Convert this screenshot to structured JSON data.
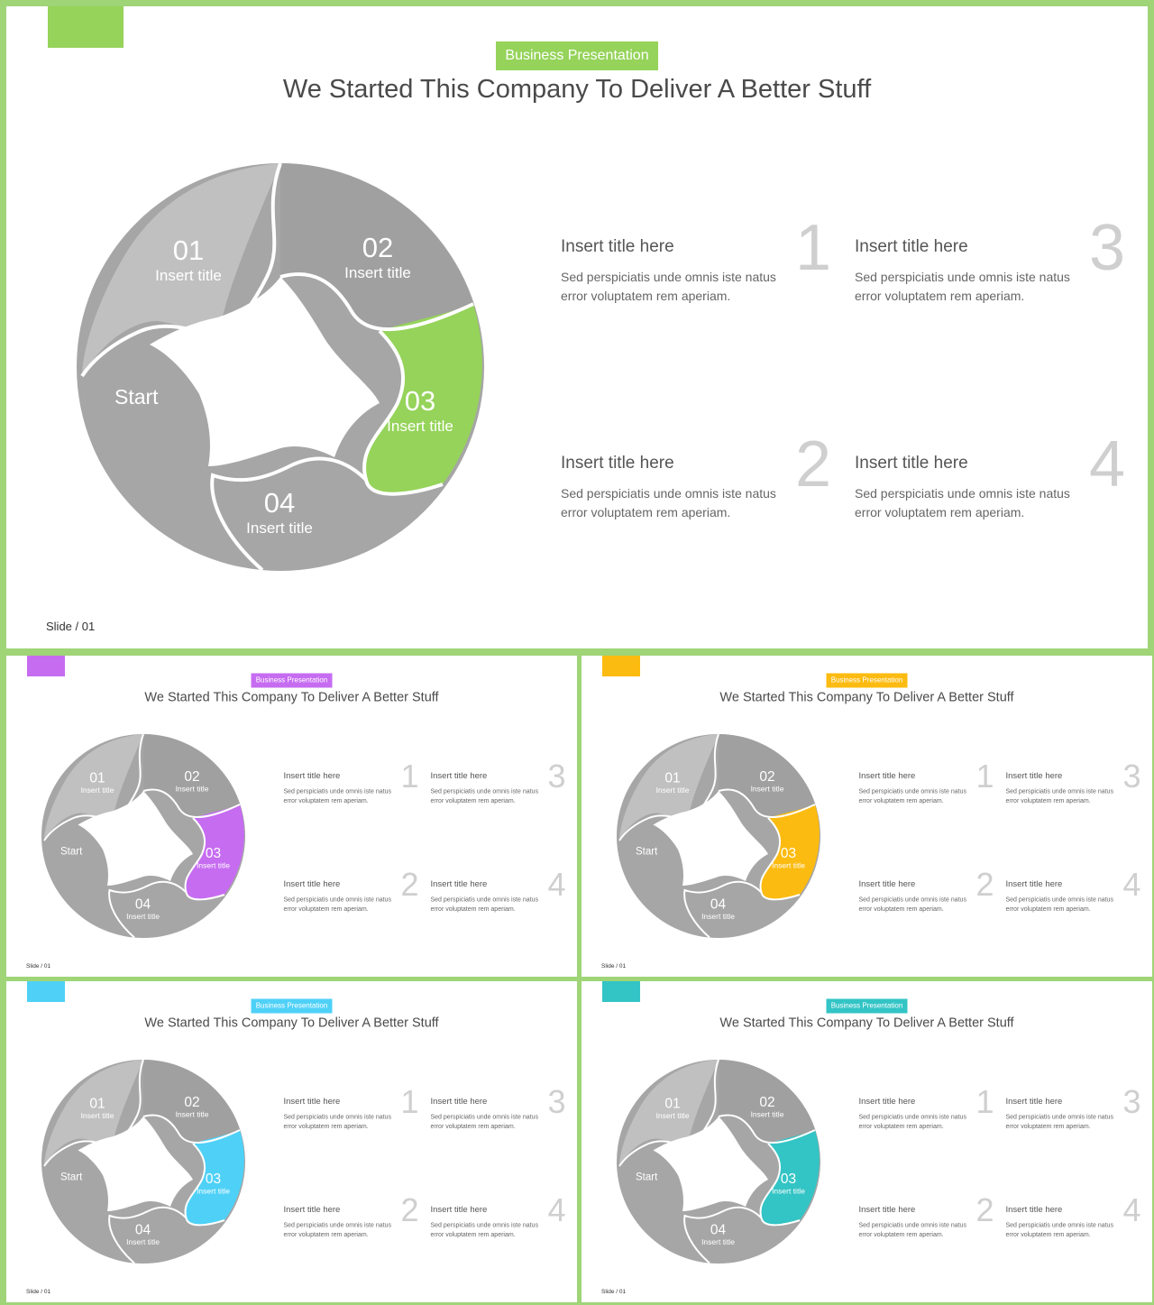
{
  "slides": [
    {
      "accent": "#95d35a"
    },
    {
      "accent": "#c66cf1"
    },
    {
      "accent": "#fcbb10"
    },
    {
      "accent": "#4fd1f7"
    },
    {
      "accent": "#33c4c5"
    }
  ],
  "badge": "Business Presentation",
  "title": "We Started This Company To Deliver A Better Stuff",
  "wheel": {
    "start": "Start",
    "segments": [
      {
        "num": "01",
        "label": "Insert title"
      },
      {
        "num": "02",
        "label": "Insert title"
      },
      {
        "num": "03",
        "label": "Insert title"
      },
      {
        "num": "04",
        "label": "Insert title"
      }
    ]
  },
  "items": [
    {
      "num": "1",
      "title": "Insert  title here",
      "text": "Sed perspiciatis unde omnis iste natus error voluptatem  rem aperiam."
    },
    {
      "num": "3",
      "title": "Insert  title here",
      "text": "Sed perspiciatis unde omnis iste natus error voluptatem  rem aperiam."
    },
    {
      "num": "2",
      "title": "Insert  title here",
      "text": "Sed perspiciatis unde omnis iste natus error voluptatem  rem aperiam."
    },
    {
      "num": "4",
      "title": "Insert  title here",
      "text": "Sed perspiciatis unde omnis iste natus error voluptatem  rem aperiam."
    }
  ],
  "slide_number": "Slide / 01",
  "colors": {
    "gray_dark": "#a0a0a0",
    "gray_mid": "#a6a6a6",
    "gray_light": "#c0c0c0"
  }
}
